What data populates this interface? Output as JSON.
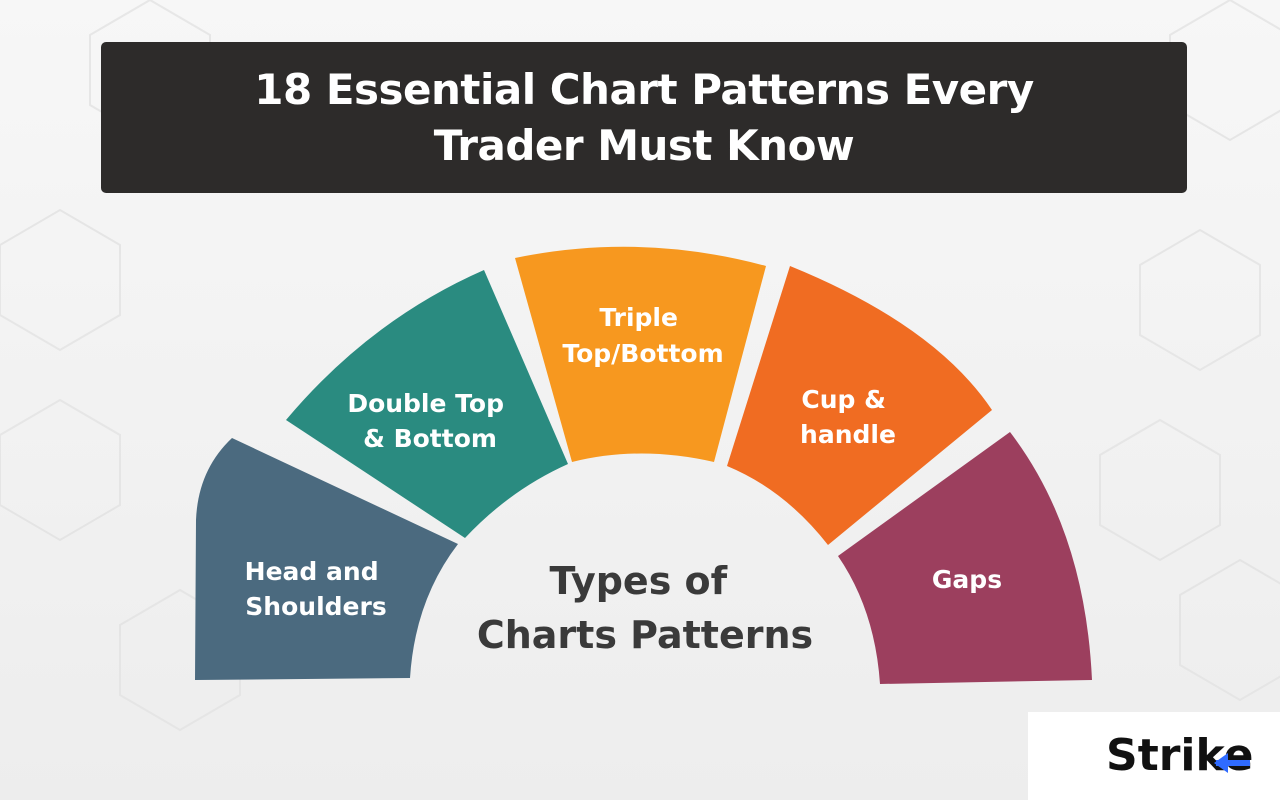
{
  "title": "18 Essential Chart Patterns Every Trader Must Know",
  "center": {
    "line1": "Types of",
    "line2": "Charts Patterns"
  },
  "segments": [
    {
      "line1": "Head and",
      "line2": "Shoulders",
      "color": "#4b6a7f"
    },
    {
      "line1": "Double Top",
      "line2": "& Bottom",
      "color": "#2a8b80"
    },
    {
      "line1": "Triple",
      "line2": "Top/Bottom",
      "color": "#f7981f"
    },
    {
      "line1": "Cup &",
      "line2": "handle",
      "color": "#f06c22"
    },
    {
      "line1": "Gaps",
      "line2": "",
      "color": "#9c3f5e"
    }
  ],
  "logo": {
    "text": "Strike",
    "accent": "#2f6bff"
  }
}
